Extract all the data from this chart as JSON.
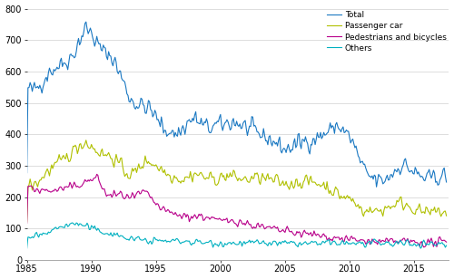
{
  "ylim": [
    0,
    800
  ],
  "yticks": [
    0,
    100,
    200,
    300,
    400,
    500,
    600,
    700,
    800
  ],
  "xlim_start": 1985.0,
  "xlim_end": 2017.7,
  "xticks": [
    1985,
    1990,
    1995,
    2000,
    2005,
    2010,
    2015
  ],
  "colors": {
    "Total": "#1a78c2",
    "Passenger car": "#b0c000",
    "Pedestrians and bicycles": "#b8008a",
    "Others": "#00b0c0"
  },
  "legend_labels": [
    "Total",
    "Passenger car",
    "Pedestrians and bicycles",
    "Others"
  ],
  "grid_color": "#d8d8d8",
  "background_color": "#ffffff",
  "line_width": 0.8
}
